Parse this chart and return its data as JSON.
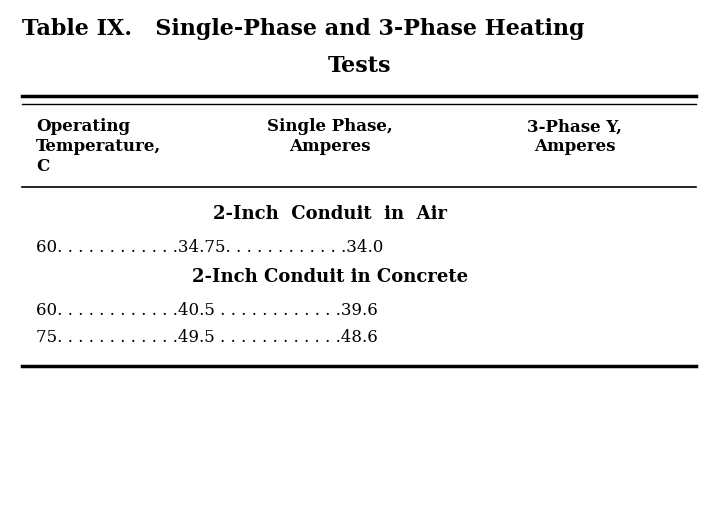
{
  "title_line1": "Table IX.   Single-Phase and 3-Phase Heating",
  "title_line2": "Tests",
  "header_col1": "Operating\nTemperature,\nC",
  "header_col2": "Single Phase,\nAmperes",
  "header_col3": "3-Phase Y,\nAmperes",
  "section1_label": "2-Inch  Conduit  in  Air",
  "section2_label": "2-Inch Conduit in Concrete",
  "row1": "60. . . . . . . . . . . .34.75. . . . . . . . . . . .34.0",
  "row2": "60. . . . . . . . . . . .40.5 . . . . . . . . . . . .39.6",
  "row3": "75. . . . . . . . . . . .49.5 . . . . . . . . . . . .48.6",
  "bg_color": "#ffffff",
  "text_color": "#000000",
  "title_fontsize": 16,
  "header_fontsize": 12,
  "data_fontsize": 12,
  "section_fontsize": 13
}
